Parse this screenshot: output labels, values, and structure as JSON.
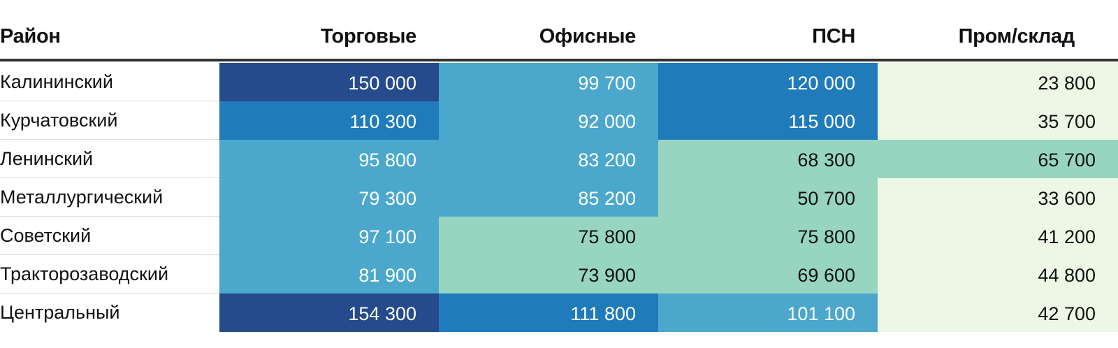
{
  "chart_data": {
    "type": "table",
    "columns": [
      "Район",
      "Торговые",
      "Офисные",
      "ПСН",
      "Пром/склад"
    ],
    "rows": [
      {
        "label": "Калининский",
        "values": [
          "150 000",
          "99 700",
          "120 000",
          "23 800"
        ],
        "numbers": [
          150000,
          99700,
          120000,
          23800
        ]
      },
      {
        "label": "Курчатовский",
        "values": [
          "110 300",
          "92 000",
          "115 000",
          "35 700"
        ],
        "numbers": [
          110300,
          92000,
          115000,
          35700
        ]
      },
      {
        "label": "Ленинский",
        "values": [
          "95 800",
          "83 200",
          "68 300",
          "65 700"
        ],
        "numbers": [
          95800,
          83200,
          68300,
          65700
        ]
      },
      {
        "label": "Металлургический",
        "values": [
          "79 300",
          "85 200",
          "50 700",
          "33 600"
        ],
        "numbers": [
          79300,
          85200,
          50700,
          33600
        ]
      },
      {
        "label": "Советский",
        "values": [
          "97 100",
          "75 800",
          "75 800",
          "41 200"
        ],
        "numbers": [
          97100,
          75800,
          75800,
          41200
        ]
      },
      {
        "label": "Тракторозаводский",
        "values": [
          "81 900",
          "73 900",
          "69 600",
          "44 800"
        ],
        "numbers": [
          81900,
          73900,
          69600,
          44800
        ]
      },
      {
        "label": "Центральный",
        "values": [
          "154 300",
          "111 800",
          "101 100",
          "42 700"
        ],
        "numbers": [
          154300,
          111800,
          101100,
          42700
        ]
      }
    ],
    "color_scale": {
      "bins": [
        {
          "min": 130000,
          "color": "#264b8c",
          "text": "#ffffff"
        },
        {
          "min": 105000,
          "color": "#1f7bba",
          "text": "#ffffff"
        },
        {
          "min": 78000,
          "color": "#4ba8cc",
          "text": "#ffffff"
        },
        {
          "min": 50000,
          "color": "#97d5c1",
          "text": "#111111"
        },
        {
          "min": 0,
          "color": "#eef7e6",
          "text": "#111111"
        }
      ]
    }
  }
}
